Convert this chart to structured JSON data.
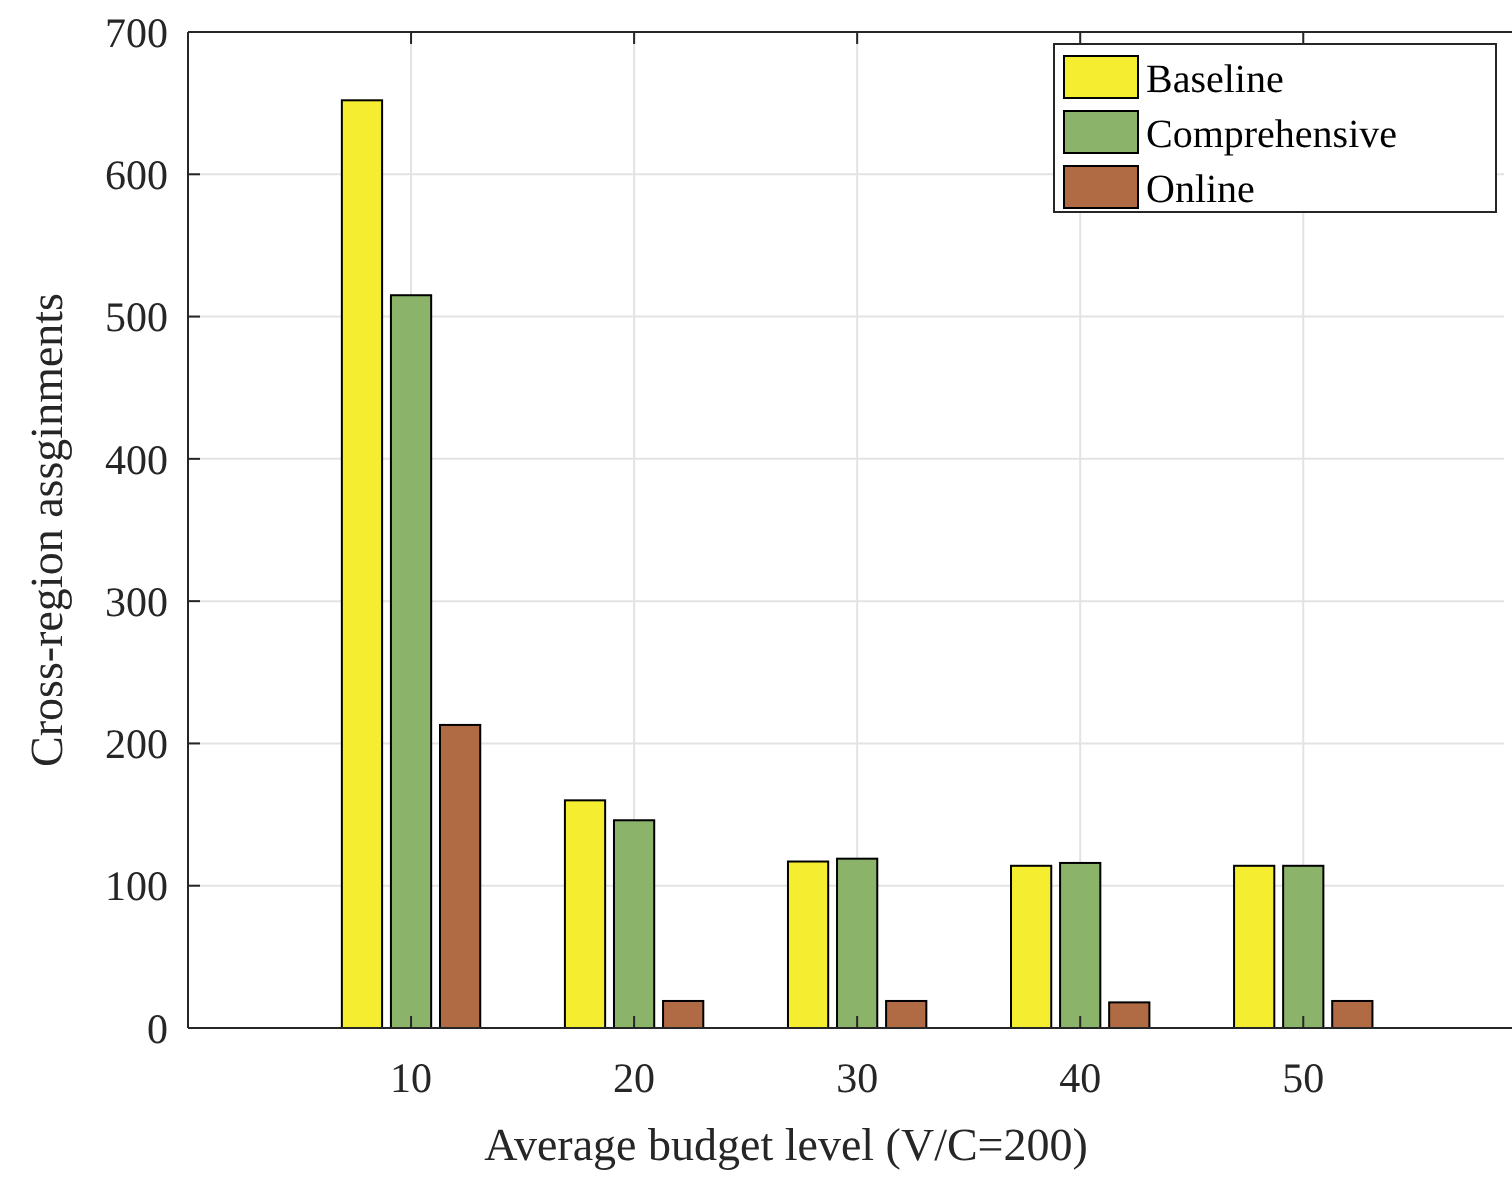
{
  "chart_data": {
    "type": "bar",
    "xlabel": "Average budget level (V/C=200)",
    "ylabel": "Cross-region assginments",
    "x": [
      10,
      20,
      30,
      40,
      50
    ],
    "xlim": [
      0,
      59
    ],
    "xticks": [
      10,
      20,
      30,
      40,
      50
    ],
    "ylim": [
      0,
      700
    ],
    "yticks": [
      0,
      100,
      200,
      300,
      400,
      500,
      600,
      700
    ],
    "grid": true,
    "legend": "top right",
    "series": [
      {
        "name": "Baseline",
        "color": "#f5ee30",
        "values": [
          652,
          160,
          117,
          114,
          114
        ]
      },
      {
        "name": "Comprehensive",
        "color": "#8bb36a",
        "values": [
          515,
          146,
          119,
          116,
          114
        ]
      },
      {
        "name": "Online",
        "color": "#b06b45",
        "values": [
          213,
          19,
          19,
          18,
          19
        ]
      }
    ]
  }
}
